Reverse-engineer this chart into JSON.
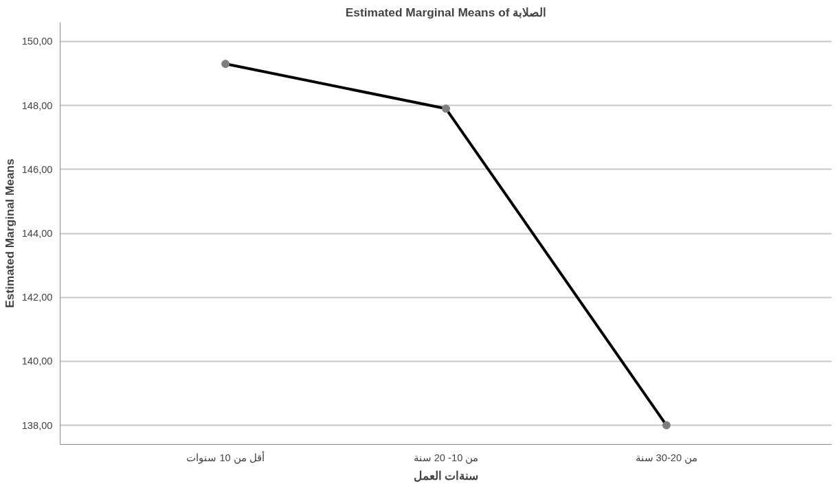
{
  "chart_data": {
    "type": "line",
    "title": "Estimated Marginal Means of الصلابة",
    "xlabel": "سنةات العمل",
    "ylabel": "Estimated Marginal Means",
    "categories": [
      "أقل من 10 سنوات",
      "من 10- 20 سنة",
      "من 20-30 سنة"
    ],
    "series": [
      {
        "color": "#000000",
        "values": [
          149.3,
          147.9,
          138.0
        ]
      }
    ],
    "ylim": [
      137.4,
      150.6
    ],
    "yticks": [
      {
        "value": 138,
        "label": "138,00"
      },
      {
        "value": 140,
        "label": "140,00"
      },
      {
        "value": 142,
        "label": "142,00"
      },
      {
        "value": 144,
        "label": "144,00"
      },
      {
        "value": 146,
        "label": "146,00"
      },
      {
        "value": 148,
        "label": "148,00"
      },
      {
        "value": 150,
        "label": "150,00"
      }
    ],
    "grid": "y",
    "marker": "circle",
    "line_style": "solid"
  }
}
